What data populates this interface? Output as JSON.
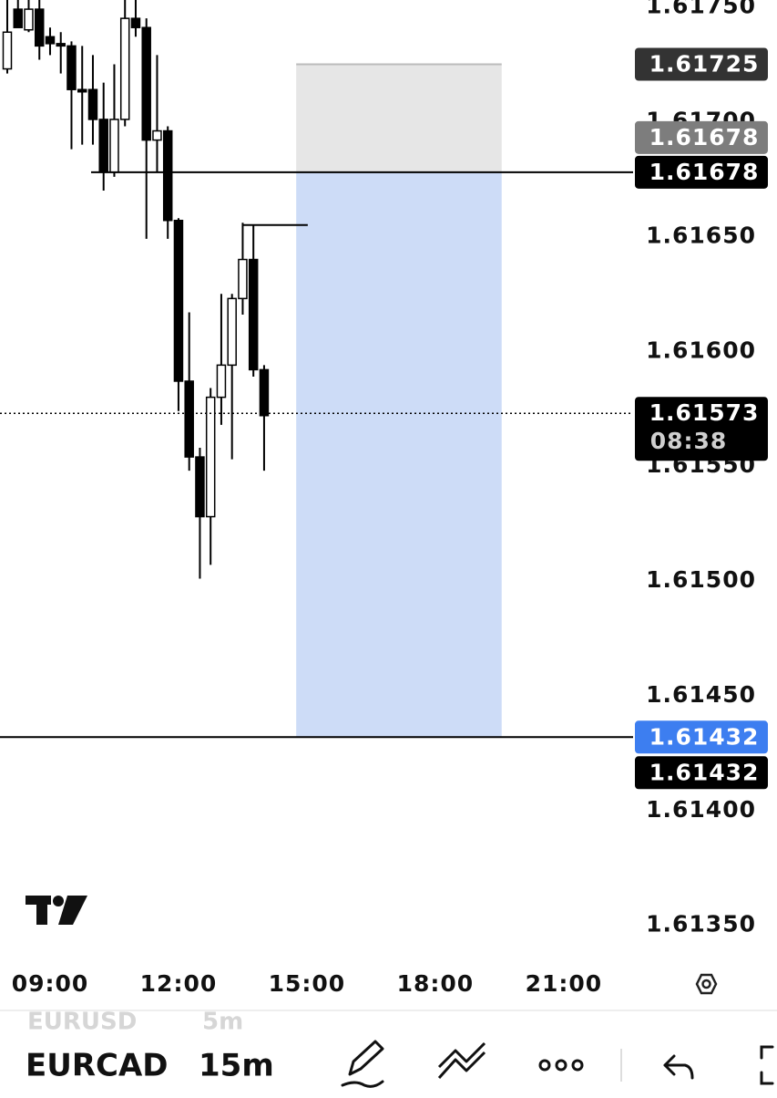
{
  "chart_data": {
    "type": "candlestick",
    "x": [
      8,
      8.25,
      8.5,
      8.75,
      9,
      9.25,
      9.5,
      9.75,
      10,
      10.25,
      10.5,
      10.75,
      11,
      11.25,
      11.5,
      11.75,
      12,
      12.25,
      12.5,
      12.75,
      13,
      13.25,
      13.5,
      13.75,
      14
    ],
    "open": [
      1.61723,
      1.61749,
      1.6174,
      1.61749,
      1.61737,
      1.61734,
      1.61733,
      1.61714,
      1.61714,
      1.61701,
      1.61678,
      1.61701,
      1.61745,
      1.61741,
      1.61692,
      1.61696,
      1.61657,
      1.61587,
      1.61554,
      1.61528,
      1.6158,
      1.61594,
      1.61623,
      1.6164,
      1.61592
    ],
    "high": [
      1.61753,
      1.61753,
      1.61753,
      1.61753,
      1.61741,
      1.61739,
      1.61735,
      1.61733,
      1.61729,
      1.61717,
      1.61725,
      1.61753,
      1.61753,
      1.61745,
      1.61729,
      1.61698,
      1.61658,
      1.61617,
      1.61558,
      1.61584,
      1.61625,
      1.61625,
      1.61656,
      1.61655,
      1.61594
    ],
    "low": [
      1.61721,
      1.61741,
      1.61739,
      1.61727,
      1.61729,
      1.61721,
      1.61688,
      1.6169,
      1.6169,
      1.6167,
      1.61676,
      1.61698,
      1.61737,
      1.61649,
      1.61678,
      1.61649,
      1.61574,
      1.61548,
      1.61501,
      1.61507,
      1.61568,
      1.61553,
      1.61616,
      1.61589,
      1.61548
    ],
    "close": [
      1.61739,
      1.61741,
      1.61749,
      1.61733,
      1.61734,
      1.61733,
      1.61714,
      1.61713,
      1.61701,
      1.61678,
      1.61701,
      1.61745,
      1.61741,
      1.61692,
      1.61696,
      1.61657,
      1.61587,
      1.61554,
      1.61528,
      1.6158,
      1.61594,
      1.61623,
      1.6164,
      1.61592,
      1.61572
    ],
    "up_color": "#ffffff",
    "down_color": "#000000",
    "xlim": [
      7.83,
      22.62
    ],
    "xticks": [
      {
        "value": 9,
        "label": "09:00"
      },
      {
        "value": 12,
        "label": "12:00"
      },
      {
        "value": 15,
        "label": "15:00"
      },
      {
        "value": 18,
        "label": "18:00"
      },
      {
        "value": 21,
        "label": "21:00"
      }
    ],
    "ylim": [
      1.61336,
      1.61753
    ],
    "yticks": [
      {
        "value": 1.6175,
        "label": "1.61750"
      },
      {
        "value": 1.617,
        "label": "1.61700"
      },
      {
        "value": 1.6165,
        "label": "1.61650"
      },
      {
        "value": 1.616,
        "label": "1.61600"
      },
      {
        "value": 1.6155,
        "label": "1.61550"
      },
      {
        "value": 1.615,
        "label": "1.61500"
      },
      {
        "value": 1.6145,
        "label": "1.61450"
      },
      {
        "value": 1.614,
        "label": "1.61400"
      },
      {
        "value": 1.6135,
        "label": "1.61350"
      }
    ],
    "position": {
      "x": [
        14.75,
        19.55
      ],
      "stop": 1.61725,
      "entry": 1.61678,
      "target": 1.61432,
      "stop_color": "#e6e6e6",
      "target_color": "#cddcf7"
    },
    "ray": {
      "x": [
        13.5,
        15.02
      ],
      "value": 1.61655
    },
    "last_price": 1.61573,
    "countdown": "08:38"
  },
  "toolbar": {
    "symbol": "EURCAD",
    "interval": "15m",
    "previous_symbol": "EURUSD",
    "previous_interval": "5m"
  }
}
